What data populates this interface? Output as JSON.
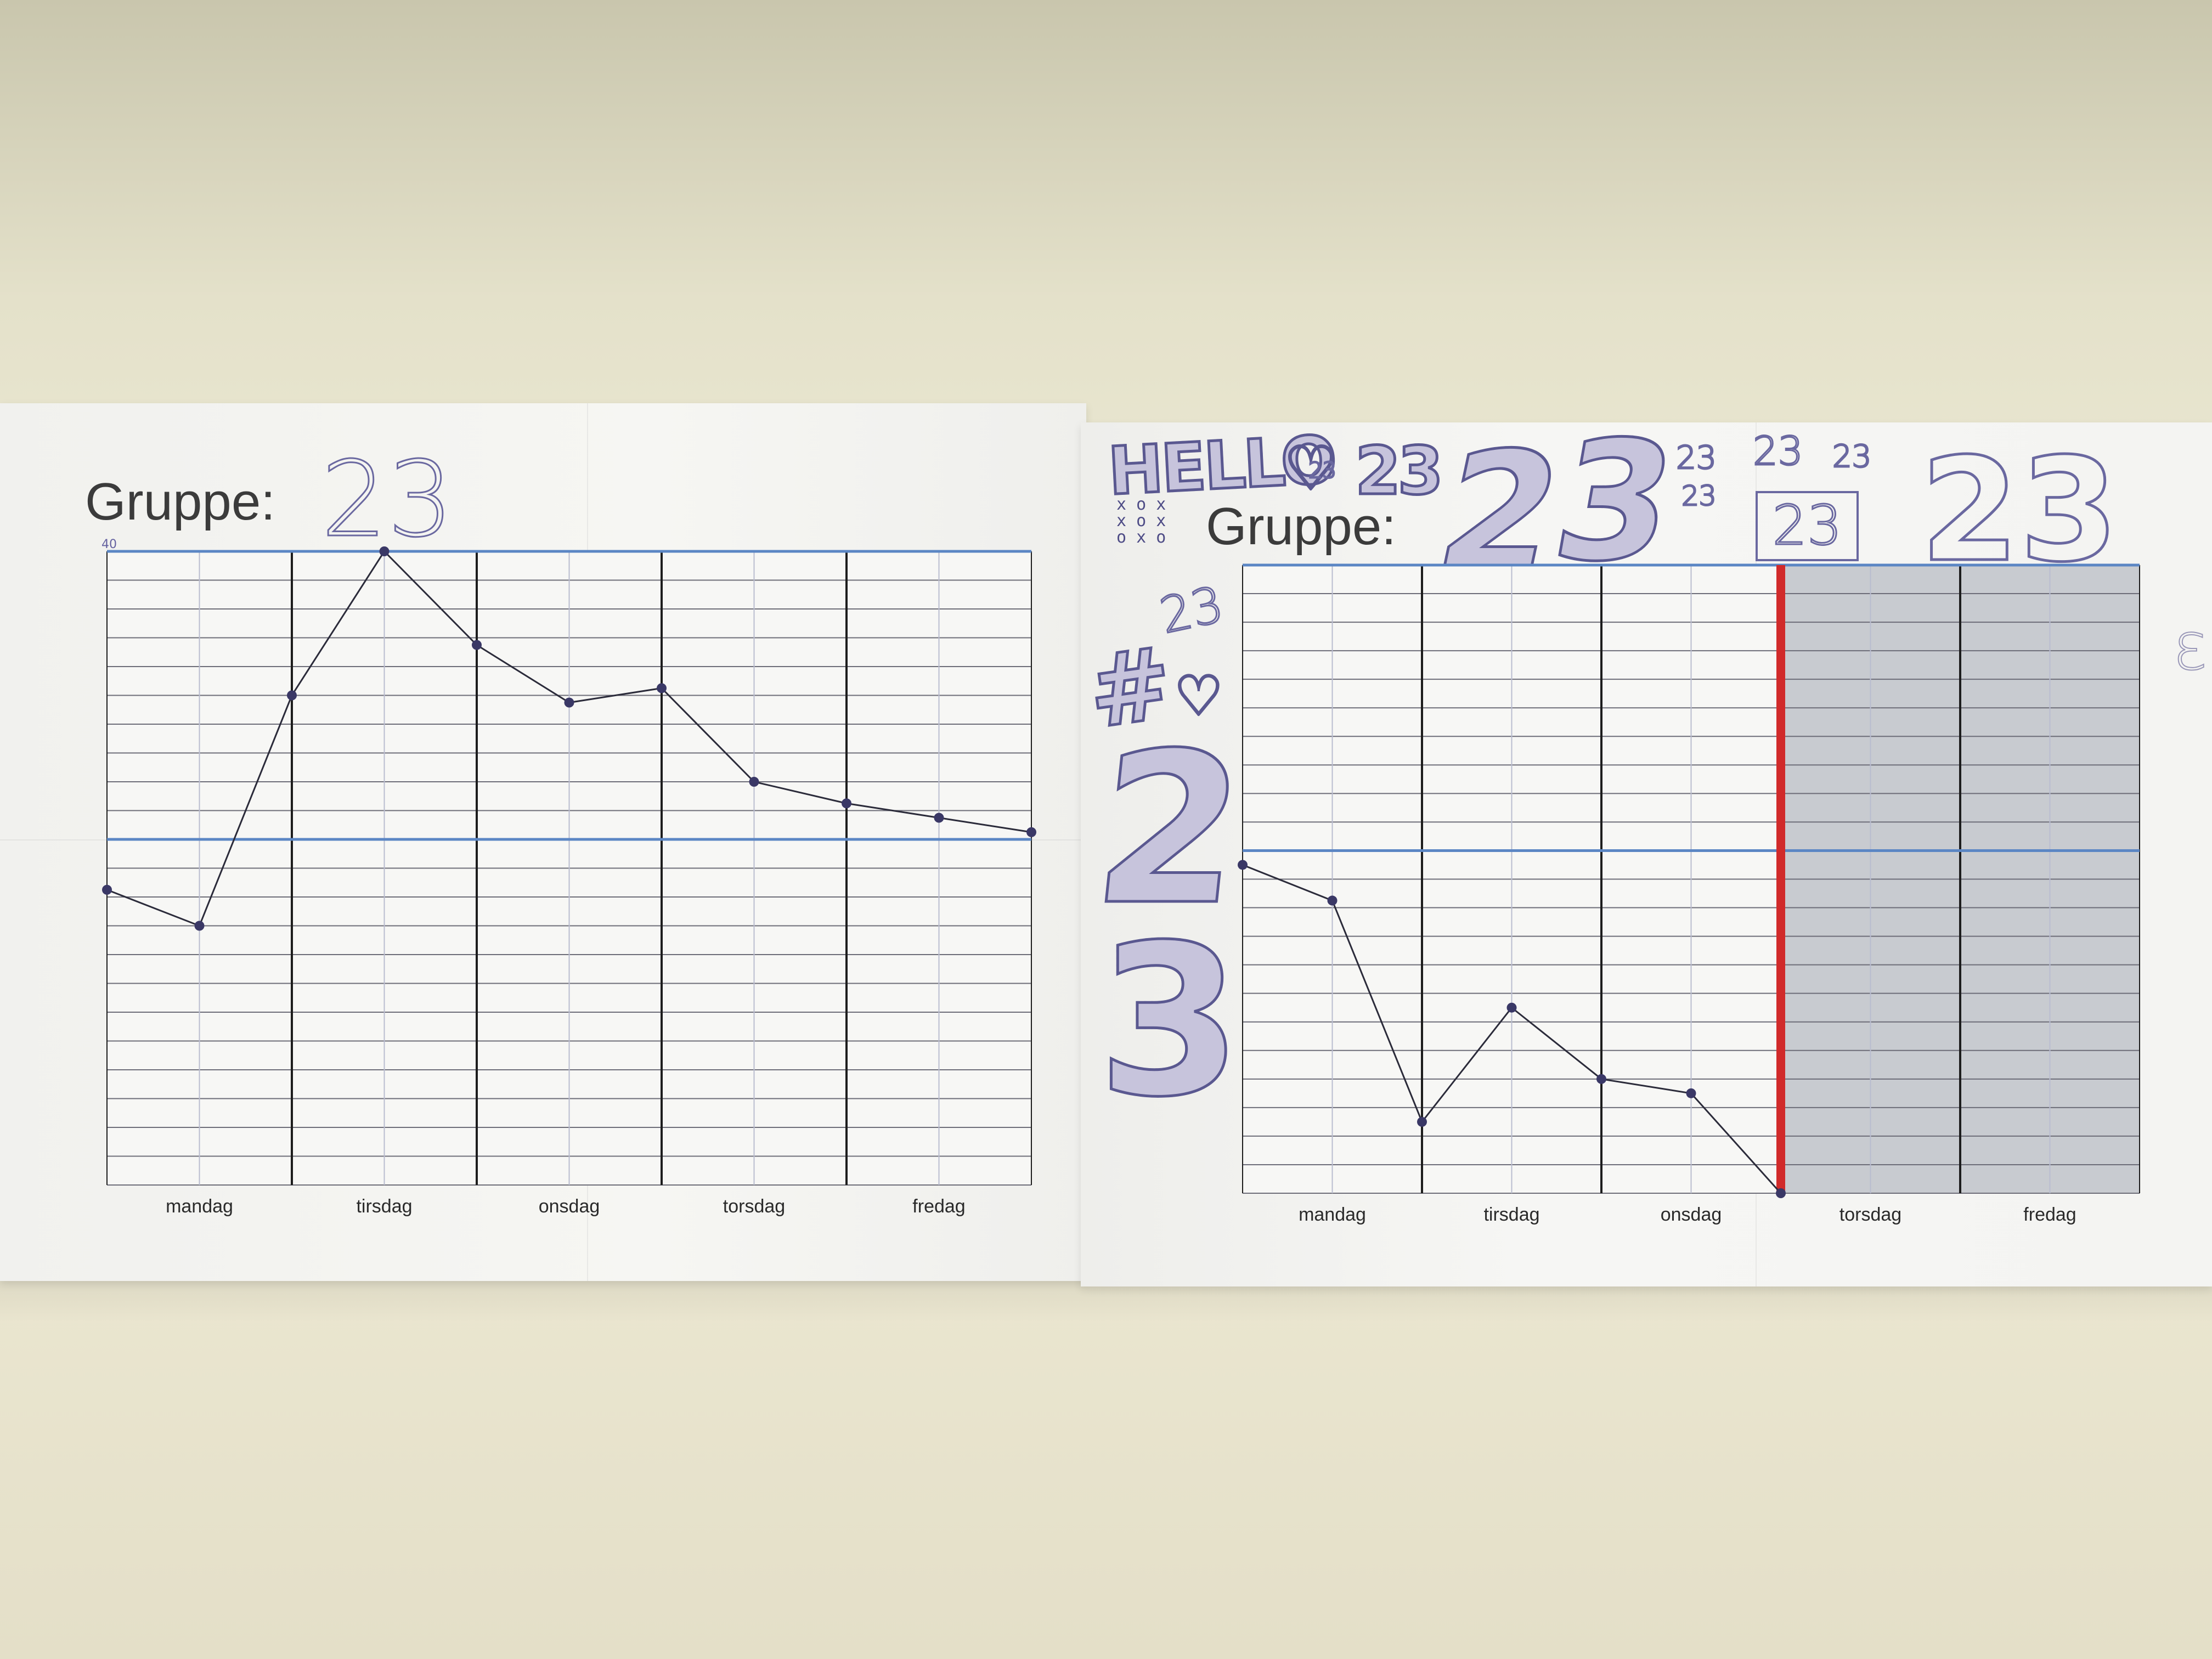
{
  "left_poster": {
    "title_label": "Gruppe:",
    "group_number": "23",
    "axis_top_note": "40",
    "days": [
      "mandag",
      "tirsdag",
      "onsdag",
      "torsdag",
      "fredag"
    ]
  },
  "right_poster": {
    "title_label": "Gruppe:",
    "days": [
      "mandag",
      "tirsdag",
      "onsdag",
      "torsdag",
      "fredag"
    ],
    "doodles": {
      "hello": "HELLO",
      "heart_number": "23",
      "boxed_small": "23",
      "big_2": "2",
      "big_3": "3",
      "small_a": "23",
      "small_b": "23",
      "small_c": "23",
      "small_d": "23",
      "boxed": "23",
      "large": "23",
      "hash": "#",
      "hash_sup": "23",
      "tall_2": "2",
      "tall_3": "3",
      "tic_tac_toe": [
        "x o x",
        "x o x",
        "o x o"
      ]
    }
  },
  "colors": {
    "wall": "#ece9d3",
    "paper": "#f4f4f1",
    "pen": "#6461a0",
    "axis_blue": "#5b86c4",
    "marker_red": "#d12a2a",
    "shaded": "#c8cbd0"
  },
  "chart_data": [
    {
      "type": "line",
      "title": "Gruppe: 23",
      "categories": [
        "mandag",
        "tirsdag",
        "onsdag",
        "torsdag",
        "fredag"
      ],
      "x": [
        0,
        0.5,
        1,
        1.5,
        2,
        2.5,
        3,
        3.5,
        4,
        4.5,
        5
      ],
      "y": [
        -7,
        -12,
        20,
        40,
        27,
        19,
        21,
        8,
        5,
        3,
        1
      ],
      "ylim": [
        -48,
        40
      ],
      "grid": true
    },
    {
      "type": "line",
      "title": "Gruppe:",
      "categories": [
        "mandag",
        "tirsdag",
        "onsdag",
        "torsdag",
        "fredag"
      ],
      "x": [
        0,
        0.5,
        1,
        1.5,
        2,
        2.5,
        3
      ],
      "y": [
        -2,
        -7,
        -38,
        -22,
        -32,
        -34,
        -48
      ],
      "ylim": [
        -48,
        40
      ],
      "shaded_days": [
        "torsdag",
        "fredag"
      ],
      "grid": true
    }
  ]
}
